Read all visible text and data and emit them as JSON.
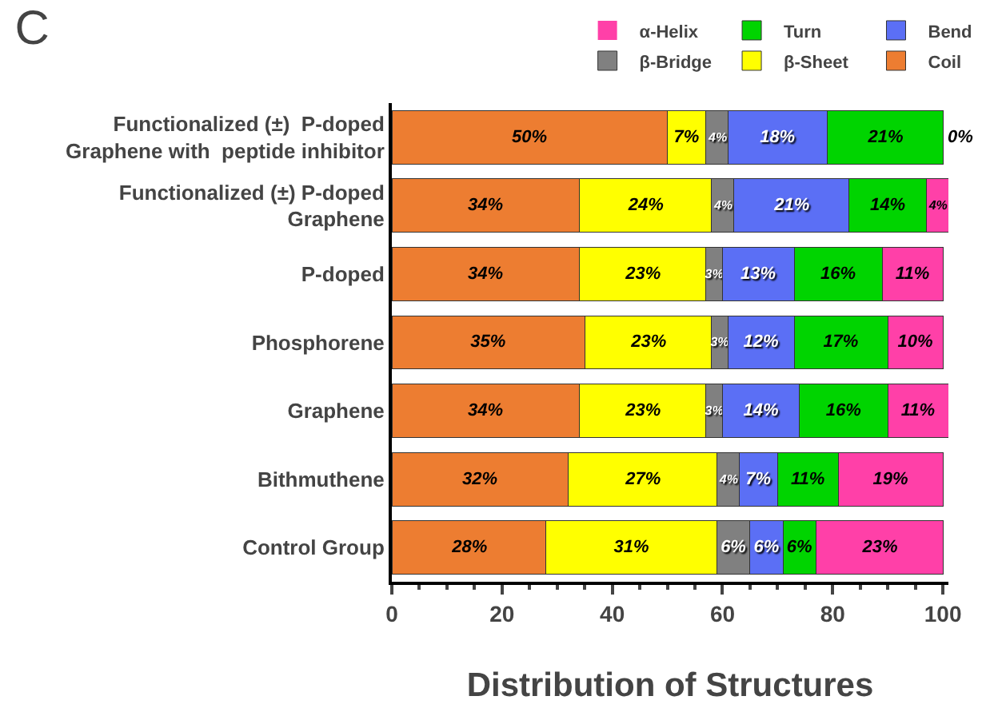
{
  "chart_data": {
    "type": "bar",
    "orientation": "horizontal",
    "stacked": true,
    "title": "C",
    "xlabel": "Distribution of Structures",
    "categories": [
      "Functionalized (±)  P-doped\nGraphene with  peptide inhibitor",
      "Functionalized (±) P-doped\nGraphene",
      "P-doped",
      "Phosphorene",
      "Graphene",
      "Bithmuthene",
      "Control Group"
    ],
    "series": [
      {
        "name": "Coil",
        "color": "#ed7d31",
        "values": [
          50,
          34,
          34,
          35,
          34,
          32,
          28
        ],
        "value_labels": [
          "50%",
          "34%",
          "34%",
          "35%",
          "34%",
          "32%",
          "28%"
        ]
      },
      {
        "name": "β-Sheet",
        "color": "#ffff00",
        "values": [
          7,
          24,
          23,
          23,
          23,
          27,
          31
        ],
        "value_labels": [
          "7%",
          "24%",
          "23%",
          "23%",
          "23%",
          "27%",
          "31%"
        ]
      },
      {
        "name": "β-Bridge",
        "color": "#808080",
        "values": [
          4,
          4,
          3,
          3,
          3,
          4,
          6
        ],
        "value_labels": [
          "4%",
          "4%",
          "3%",
          "3%",
          "3%",
          "4%",
          "6%"
        ]
      },
      {
        "name": "Bend",
        "color": "#5b6ff5",
        "values": [
          18,
          21,
          13,
          12,
          14,
          7,
          6
        ],
        "value_labels": [
          "18%",
          "21%",
          "13%",
          "12%",
          "14%",
          "7%",
          "6%"
        ]
      },
      {
        "name": "Turn",
        "color": "#00d400",
        "values": [
          21,
          14,
          16,
          17,
          16,
          11,
          6
        ],
        "value_labels": [
          "21%",
          "14%",
          "16%",
          "17%",
          "16%",
          "11%",
          "6%"
        ]
      },
      {
        "name": "α-Helix",
        "color": "#ff40a8",
        "values": [
          0,
          4,
          11,
          10,
          11,
          19,
          23
        ],
        "value_labels": [
          "0%",
          "4%",
          "11%",
          "10%",
          "11%",
          "19%",
          "23%"
        ]
      }
    ],
    "xlim": [
      0,
      101
    ],
    "xticks": [
      0,
      20,
      40,
      60,
      80,
      100
    ],
    "grid": false,
    "legend": "top"
  }
}
